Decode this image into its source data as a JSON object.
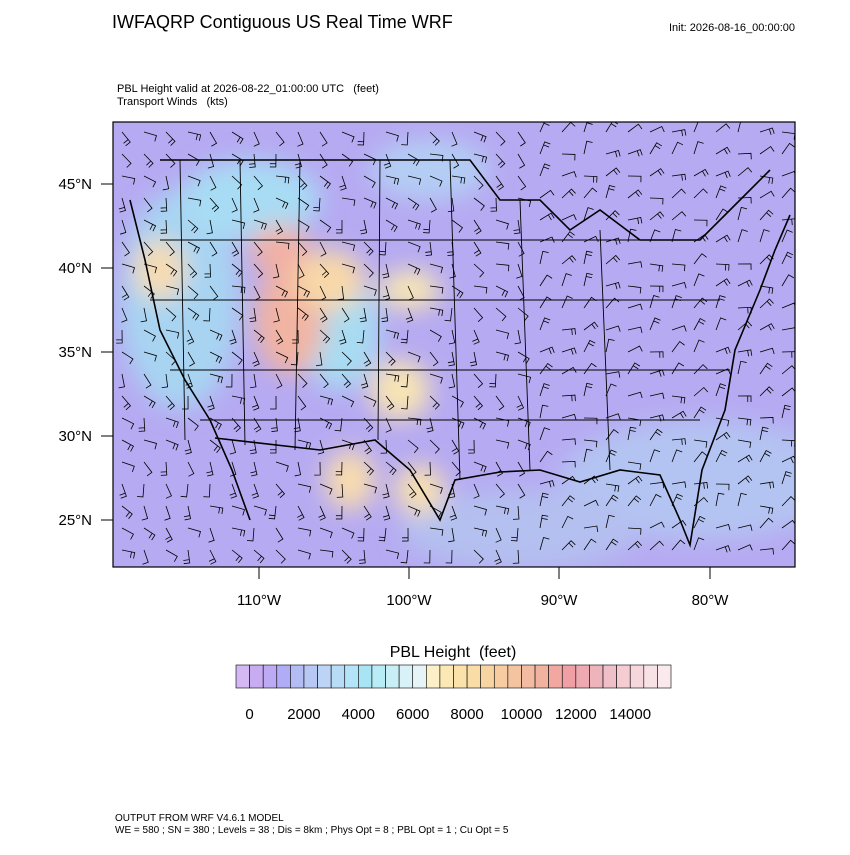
{
  "header": {
    "title": "IWFAQRP Contiguous US Real Time WRF",
    "init": "Init: 2026-08-16_00:00:00",
    "subtitle": [
      "PBL Height valid at 2026-08-22_01:00:00 UTC   (feet)",
      "Transport Winds   (kts)"
    ]
  },
  "map": {
    "lat_labels": [
      "45°N",
      "40°N",
      "35°N",
      "30°N",
      "25°N"
    ],
    "lon_labels": [
      "110°W",
      "100°W",
      "90°W",
      "80°W"
    ]
  },
  "colorbar": {
    "title": "PBL Height  (feet)",
    "labels": [
      0,
      2000,
      4000,
      6000,
      8000,
      10000,
      12000,
      14000
    ],
    "colors": [
      "#d4b8f4",
      "#c8acf2",
      "#bcaaf4",
      "#b0acf6",
      "#b4bcf4",
      "#b8c8f4",
      "#bcd4f6",
      "#b8dcf6",
      "#b4e4f8",
      "#a8e4f4",
      "#b8ecf6",
      "#c8eef6",
      "#d8f2f8",
      "#e6f4f8",
      "#fbf0c8",
      "#fbe8b4",
      "#fbe2aa",
      "#f9dca6",
      "#f8d4a2",
      "#f6cca0",
      "#f4c4a0",
      "#f3bca2",
      "#f2b2a0",
      "#f2a8a0",
      "#f0a0a4",
      "#eeaab0",
      "#eeb4bc",
      "#f0c0c8",
      "#f4ccd2",
      "#f6d8dc",
      "#f8e2e6",
      "#faeaee"
    ]
  },
  "footer": [
    "OUTPUT FROM WRF V4.6.1 MODEL",
    "WE = 580 ; SN = 380 ; Levels = 38 ; Dis = 8km ; Phys Opt = 8 ; PBL Opt = 1 ; Cu Opt = 5"
  ]
}
